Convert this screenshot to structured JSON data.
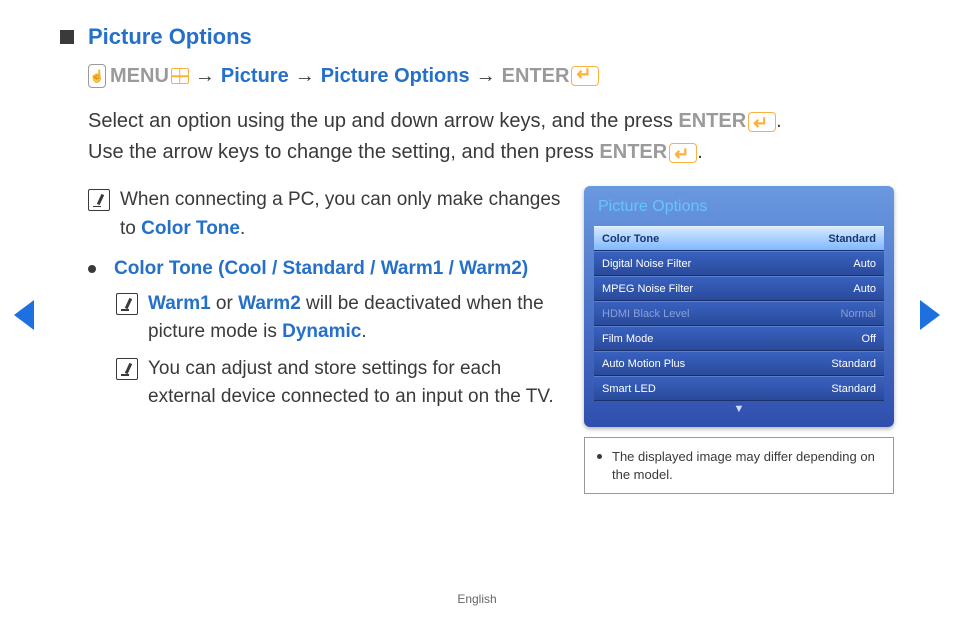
{
  "header": {
    "title": "Picture Options",
    "breadcrumb": {
      "menu": "MENU",
      "p1": "Picture",
      "p2": "Picture Options",
      "enter": "ENTER"
    }
  },
  "body": {
    "line1a": "Select an option using the up and down arrow keys, and the press ",
    "line1b": "ENTER",
    "line1c": ".",
    "line2a": "Use the arrow keys to change the setting, and then press ",
    "line2b": "ENTER",
    "line2c": "."
  },
  "note1": {
    "a": "When connecting a PC, you can only make changes to ",
    "b": "Color Tone",
    "c": "."
  },
  "bullet1": "Color Tone (Cool / Standard / Warm1 / Warm2)",
  "subnote1": {
    "a": "Warm1",
    "b": " or ",
    "c": "Warm2",
    "d": " will be deactivated when the picture mode is ",
    "e": "Dynamic",
    "f": "."
  },
  "subnote2": "You can adjust and store settings for each external device connected to an input on the TV.",
  "panel": {
    "title": "Picture Options",
    "rows": [
      {
        "label": "Color Tone",
        "value": "Standard",
        "state": "sel"
      },
      {
        "label": "Digital Noise Filter",
        "value": "Auto",
        "state": ""
      },
      {
        "label": "MPEG Noise Filter",
        "value": "Auto",
        "state": ""
      },
      {
        "label": "HDMI Black Level",
        "value": "Normal",
        "state": "dim"
      },
      {
        "label": "Film Mode",
        "value": "Off",
        "state": ""
      },
      {
        "label": "Auto Motion Plus",
        "value": "Standard",
        "state": ""
      },
      {
        "label": "Smart LED",
        "value": "Standard",
        "state": ""
      }
    ]
  },
  "caption": "The displayed image may differ depending on the model.",
  "footer": "English"
}
